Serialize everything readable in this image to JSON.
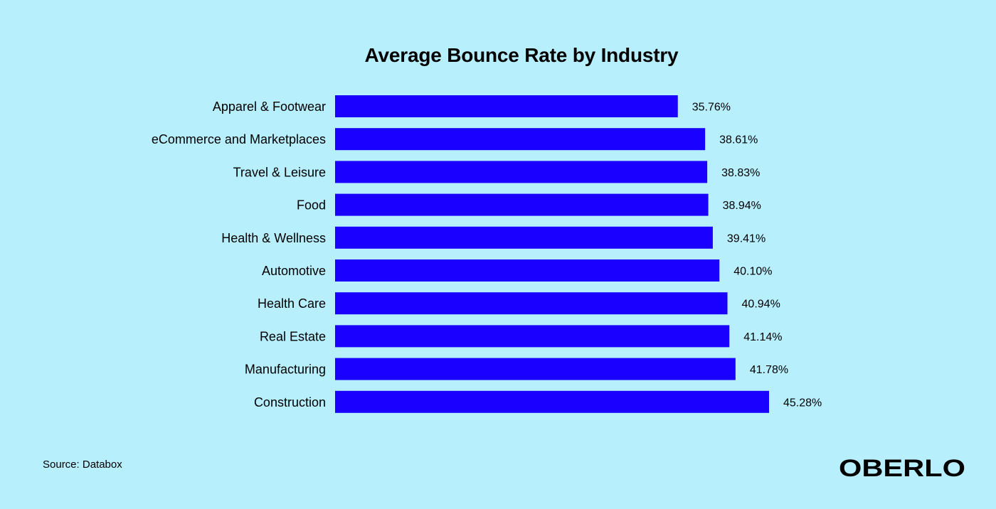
{
  "chart_data": {
    "type": "bar",
    "orientation": "horizontal",
    "title": "Average Bounce Rate by Industry",
    "categories": [
      "Apparel & Footwear",
      "eCommerce and Marketplaces",
      "Travel & Leisure",
      "Food",
      "Health & Wellness",
      "Automotive",
      "Health Care",
      "Real Estate",
      "Manufacturing",
      "Construction"
    ],
    "values": [
      35.76,
      38.61,
      38.83,
      38.94,
      39.41,
      40.1,
      40.94,
      41.14,
      41.78,
      45.28
    ],
    "value_labels": [
      "35.76%",
      "38.61%",
      "38.83%",
      "38.94%",
      "39.41%",
      "40.10%",
      "40.94%",
      "41.14%",
      "41.78%",
      "45.28%"
    ],
    "unit": "%",
    "xlabel": "",
    "ylabel": "",
    "xlim": [
      0,
      45.28
    ],
    "grid": false,
    "legend": "none",
    "bar_color": "#1a00ff",
    "background_color": "#b8effd"
  },
  "footer": {
    "source": "Source: Databox",
    "brand": "OBERLO"
  }
}
